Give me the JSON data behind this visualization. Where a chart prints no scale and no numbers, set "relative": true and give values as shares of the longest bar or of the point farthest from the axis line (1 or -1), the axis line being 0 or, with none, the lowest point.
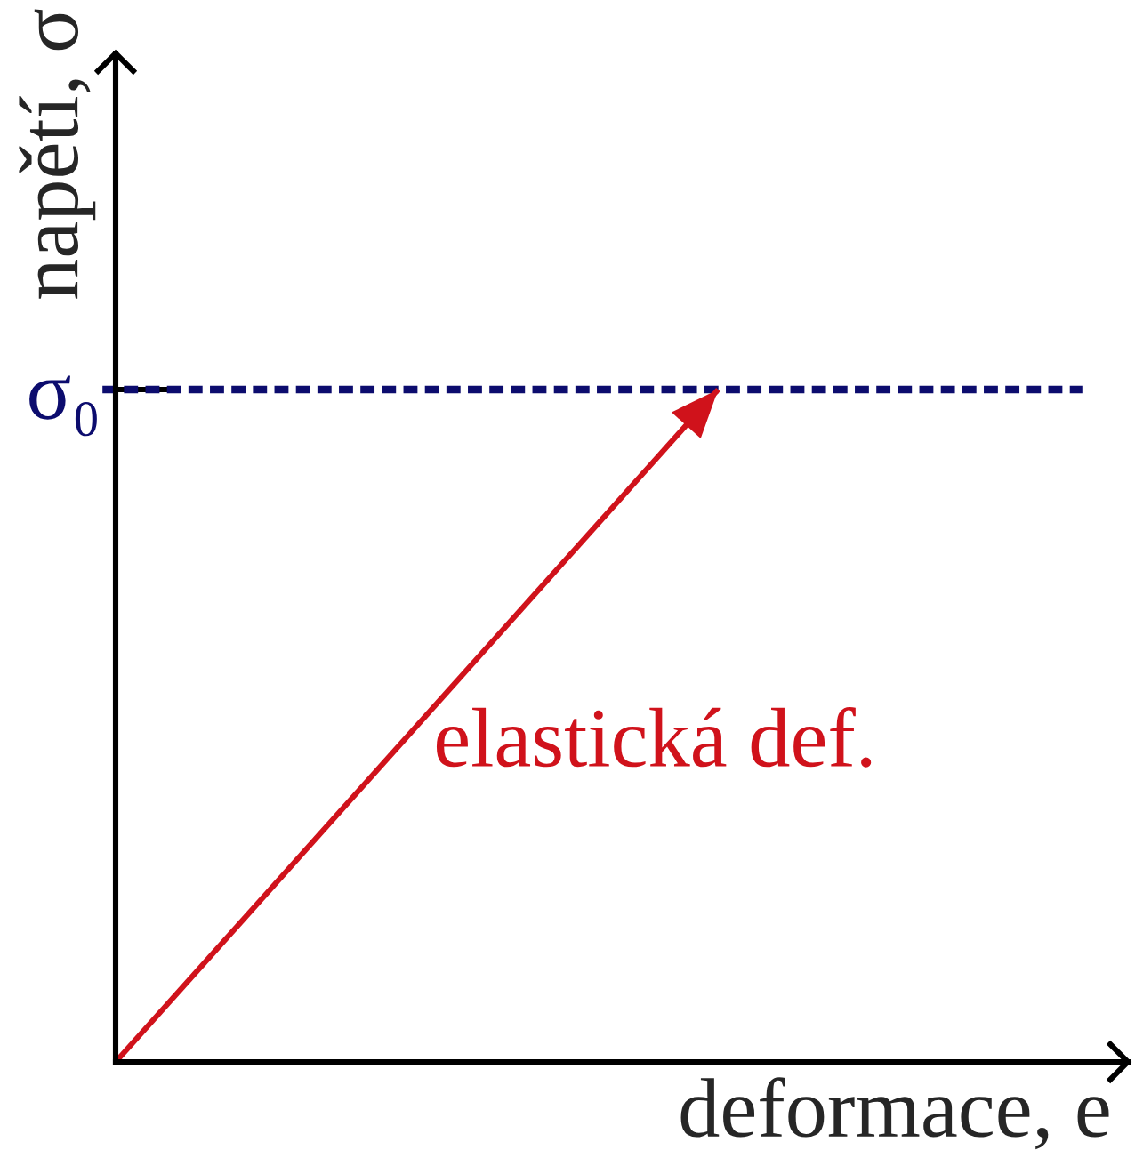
{
  "chart_data": {
    "type": "line",
    "xlabel": "deformace, e",
    "ylabel": "napětí, σ",
    "categories": [
      null,
      null
    ],
    "relative": true,
    "series": [
      {
        "name": "elastická def.",
        "color": "#d0121b",
        "values": [
          0,
          1
        ]
      }
    ],
    "ref_lines": [
      {
        "axis": "y",
        "value": 1,
        "label": "σ₀",
        "color": "#0c0c6e",
        "line_style": "dashed"
      }
    ],
    "marker": "none",
    "line_style": "solid"
  }
}
